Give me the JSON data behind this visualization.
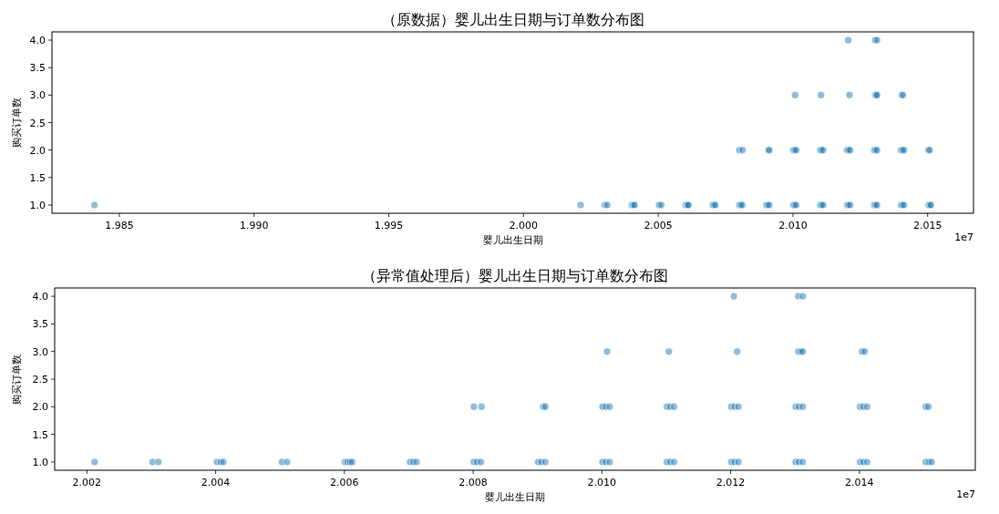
{
  "chart_data": [
    {
      "type": "scatter",
      "title": "（原数据）婴儿出生日期与订单数分布图",
      "xlabel": "婴儿出生日期",
      "ylabel": "购买订单数",
      "annotations": [
        "1e7"
      ],
      "marker": "circle",
      "xlim": [
        1.9825,
        2.0167
      ],
      "ylim": [
        0.85,
        4.15
      ],
      "xticks": [
        {
          "value": 1.985,
          "label": "1.985"
        },
        {
          "value": 1.99,
          "label": "1.990"
        },
        {
          "value": 1.995,
          "label": "1.995"
        },
        {
          "value": 2.0,
          "label": "2.000"
        },
        {
          "value": 2.005,
          "label": "2.005"
        },
        {
          "value": 2.01,
          "label": "2.010"
        },
        {
          "value": 2.015,
          "label": "2.015"
        }
      ],
      "yticks": [
        {
          "value": 1,
          "label": "1.0"
        },
        {
          "value": 1.5,
          "label": "1.5"
        },
        {
          "value": 2,
          "label": "2.0"
        },
        {
          "value": 2.5,
          "label": "2.5"
        },
        {
          "value": 3,
          "label": "3.0"
        },
        {
          "value": 3.5,
          "label": "3.5"
        },
        {
          "value": 4,
          "label": "4.0"
        }
      ],
      "series": [
        {
          "color": "#1f77b4",
          "x": [
            1.98408,
            2.00212,
            2.00302,
            2.00311,
            2.00402,
            2.00408,
            2.00412,
            2.00503,
            2.00511,
            2.00601,
            2.00605,
            2.00609,
            2.00612,
            2.00702,
            2.00707,
            2.00712,
            2.00801,
            2.00806,
            2.00812,
            2.00901,
            2.00906,
            2.00912,
            2.01001,
            2.01006,
            2.01012,
            2.01101,
            2.01106,
            2.01112,
            2.01201,
            2.01206,
            2.01212,
            2.01301,
            2.01306,
            2.01312,
            2.01401,
            2.01406,
            2.01412,
            2.01503,
            2.01508,
            2.01512,
            2.00801,
            2.00813,
            2.00909,
            2.00912,
            2.01001,
            2.01006,
            2.01012,
            2.01101,
            2.01106,
            2.01112,
            2.01201,
            2.01206,
            2.01212,
            2.01301,
            2.01306,
            2.01312,
            2.01401,
            2.01406,
            2.01412,
            2.01503,
            2.01507,
            2.01008,
            2.01104,
            2.0121,
            2.01305,
            2.01309,
            2.01312,
            2.01404,
            2.01408,
            2.01205,
            2.01305,
            2.01312
          ],
          "values": [
            1,
            1,
            1,
            1,
            1,
            1,
            1,
            1,
            1,
            1,
            1,
            1,
            1,
            1,
            1,
            1,
            1,
            1,
            1,
            1,
            1,
            1,
            1,
            1,
            1,
            1,
            1,
            1,
            1,
            1,
            1,
            1,
            1,
            1,
            1,
            1,
            1,
            1,
            1,
            1,
            2,
            2,
            2,
            2,
            2,
            2,
            2,
            2,
            2,
            2,
            2,
            2,
            2,
            2,
            2,
            2,
            2,
            2,
            2,
            2,
            2,
            3,
            3,
            3,
            3,
            3,
            3,
            3,
            3,
            4,
            4,
            4
          ]
        }
      ]
    },
    {
      "type": "scatter",
      "title": "（异常值处理后）婴儿出生日期与订单数分布图",
      "xlabel": "婴儿出生日期",
      "ylabel": "购买订单数",
      "annotations": [
        "1e7"
      ],
      "marker": "circle",
      "xlim": [
        2.0015,
        2.0158
      ],
      "ylim": [
        0.85,
        4.15
      ],
      "xticks": [
        {
          "value": 2.002,
          "label": "2.002"
        },
        {
          "value": 2.004,
          "label": "2.004"
        },
        {
          "value": 2.006,
          "label": "2.006"
        },
        {
          "value": 2.008,
          "label": "2.008"
        },
        {
          "value": 2.01,
          "label": "2.010"
        },
        {
          "value": 2.012,
          "label": "2.012"
        },
        {
          "value": 2.014,
          "label": "2.014"
        }
      ],
      "yticks": [
        {
          "value": 1,
          "label": "1.0"
        },
        {
          "value": 1.5,
          "label": "1.5"
        },
        {
          "value": 2,
          "label": "2.0"
        },
        {
          "value": 2.5,
          "label": "2.5"
        },
        {
          "value": 3,
          "label": "3.0"
        },
        {
          "value": 3.5,
          "label": "3.5"
        },
        {
          "value": 4,
          "label": "4.0"
        }
      ],
      "series": [
        {
          "color": "#1f77b4",
          "x": [
            2.00212,
            2.00302,
            2.00311,
            2.00402,
            2.00408,
            2.00412,
            2.00503,
            2.00511,
            2.00601,
            2.00605,
            2.00609,
            2.00612,
            2.00702,
            2.00707,
            2.00712,
            2.00801,
            2.00806,
            2.00812,
            2.00901,
            2.00906,
            2.00912,
            2.01001,
            2.01006,
            2.01012,
            2.01101,
            2.01106,
            2.01112,
            2.01201,
            2.01206,
            2.01212,
            2.01301,
            2.01306,
            2.01312,
            2.01401,
            2.01406,
            2.01412,
            2.01503,
            2.01508,
            2.01512,
            2.00801,
            2.00813,
            2.00909,
            2.00912,
            2.01001,
            2.01006,
            2.01012,
            2.01101,
            2.01106,
            2.01112,
            2.01201,
            2.01206,
            2.01212,
            2.01301,
            2.01306,
            2.01312,
            2.01401,
            2.01406,
            2.01412,
            2.01503,
            2.01507,
            2.01008,
            2.01104,
            2.0121,
            2.01305,
            2.01309,
            2.01312,
            2.01404,
            2.01408,
            2.01205,
            2.01305,
            2.01312
          ],
          "values": [
            1,
            1,
            1,
            1,
            1,
            1,
            1,
            1,
            1,
            1,
            1,
            1,
            1,
            1,
            1,
            1,
            1,
            1,
            1,
            1,
            1,
            1,
            1,
            1,
            1,
            1,
            1,
            1,
            1,
            1,
            1,
            1,
            1,
            1,
            1,
            1,
            1,
            1,
            1,
            2,
            2,
            2,
            2,
            2,
            2,
            2,
            2,
            2,
            2,
            2,
            2,
            2,
            2,
            2,
            2,
            2,
            2,
            2,
            2,
            2,
            3,
            3,
            3,
            3,
            3,
            3,
            3,
            3,
            4,
            4,
            4
          ]
        }
      ]
    }
  ]
}
